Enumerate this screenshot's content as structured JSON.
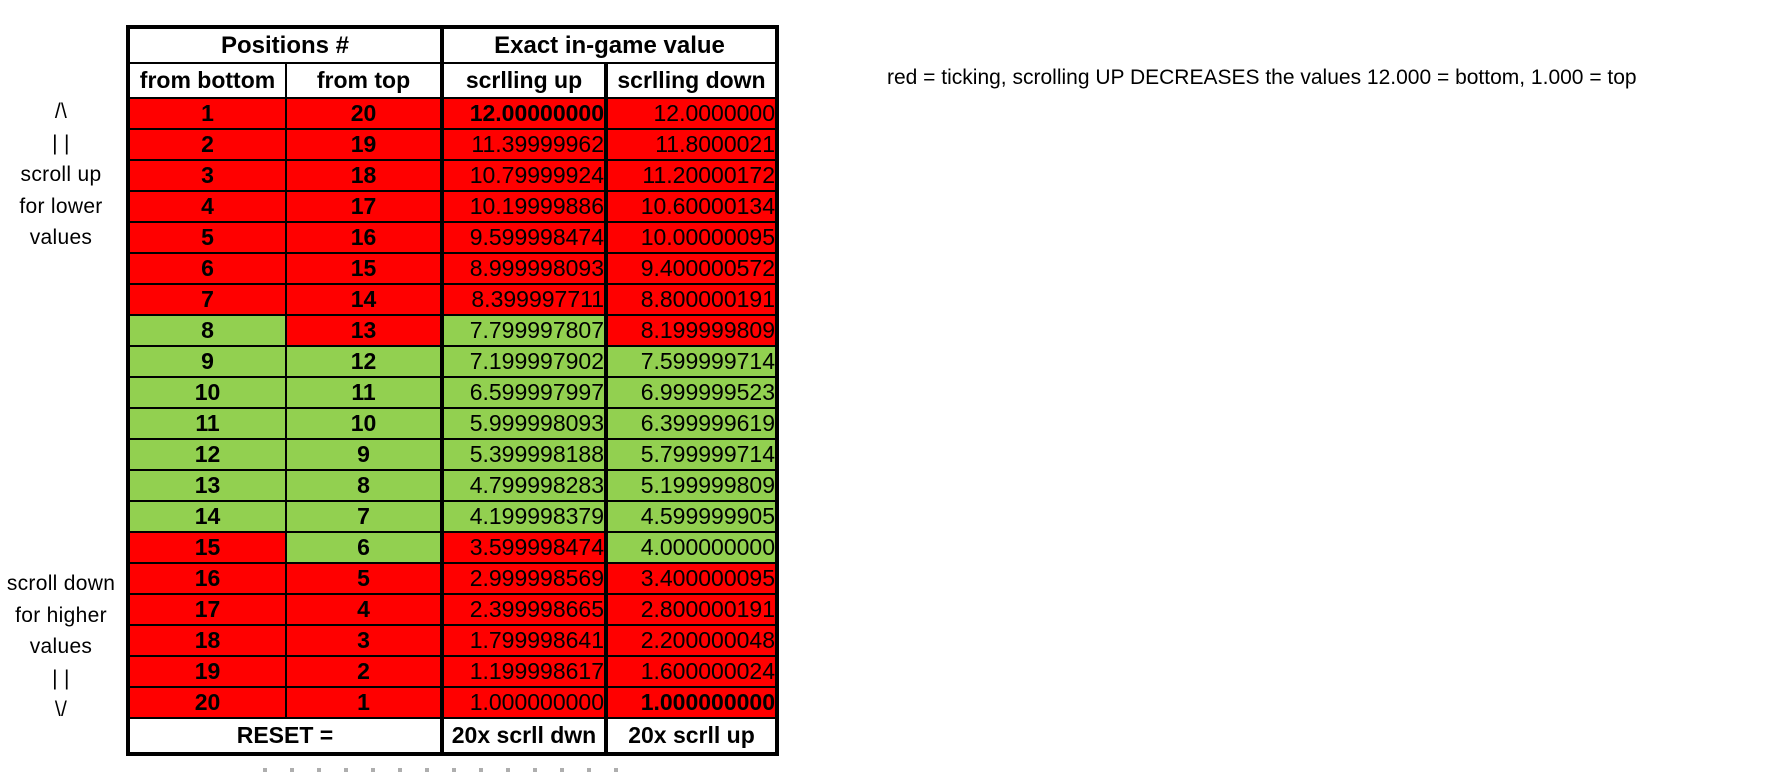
{
  "colors": {
    "red": "#FF0000",
    "green": "#92D050",
    "border": "#000000",
    "map": {
      "R": "#FF0000",
      "G": "#92D050"
    }
  },
  "annotations": {
    "left_top_lines": [
      "/\\",
      "| |",
      "scroll up",
      "for lower",
      "values"
    ],
    "left_bottom_lines": [
      "scroll down",
      "for higher",
      "values",
      "| |",
      "\\/"
    ],
    "right_note": "red = ticking, scrolling UP DECREASES the values 12.000 = bottom, 1.000 = top"
  },
  "table": {
    "group_headers": [
      {
        "label": "Positions #",
        "span": 2
      },
      {
        "label": "Exact in-game value",
        "span": 2
      }
    ],
    "column_headers": [
      "from bottom",
      "from top",
      "scrlling up",
      "scrlling down"
    ],
    "footer": {
      "reset_label": "RESET =",
      "scroll_down_label": "20x scrll dwn",
      "scroll_up_label": "20x scrll up"
    },
    "rows": [
      {
        "fb": "1",
        "ft": "20",
        "up": "12.00000000",
        "dn": "12.0000000",
        "fbC": "R",
        "ftC": "R",
        "upC": "R",
        "dnC": "R",
        "upB": true,
        "dnB": false
      },
      {
        "fb": "2",
        "ft": "19",
        "up": "11.39999962",
        "dn": "11.8000021",
        "fbC": "R",
        "ftC": "R",
        "upC": "R",
        "dnC": "R",
        "upB": false,
        "dnB": false
      },
      {
        "fb": "3",
        "ft": "18",
        "up": "10.79999924",
        "dn": "11.20000172",
        "fbC": "R",
        "ftC": "R",
        "upC": "R",
        "dnC": "R",
        "upB": false,
        "dnB": false
      },
      {
        "fb": "4",
        "ft": "17",
        "up": "10.19999886",
        "dn": "10.60000134",
        "fbC": "R",
        "ftC": "R",
        "upC": "R",
        "dnC": "R",
        "upB": false,
        "dnB": false
      },
      {
        "fb": "5",
        "ft": "16",
        "up": "9.599998474",
        "dn": "10.00000095",
        "fbC": "R",
        "ftC": "R",
        "upC": "R",
        "dnC": "R",
        "upB": false,
        "dnB": false
      },
      {
        "fb": "6",
        "ft": "15",
        "up": "8.999998093",
        "dn": "9.400000572",
        "fbC": "R",
        "ftC": "R",
        "upC": "R",
        "dnC": "R",
        "upB": false,
        "dnB": false
      },
      {
        "fb": "7",
        "ft": "14",
        "up": "8.399997711",
        "dn": "8.800000191",
        "fbC": "R",
        "ftC": "R",
        "upC": "R",
        "dnC": "R",
        "upB": false,
        "dnB": false
      },
      {
        "fb": "8",
        "ft": "13",
        "up": "7.799997807",
        "dn": "8.199999809",
        "fbC": "G",
        "ftC": "R",
        "upC": "G",
        "dnC": "R",
        "upB": false,
        "dnB": false
      },
      {
        "fb": "9",
        "ft": "12",
        "up": "7.199997902",
        "dn": "7.599999714",
        "fbC": "G",
        "ftC": "G",
        "upC": "G",
        "dnC": "G",
        "upB": false,
        "dnB": false
      },
      {
        "fb": "10",
        "ft": "11",
        "up": "6.599997997",
        "dn": "6.999999523",
        "fbC": "G",
        "ftC": "G",
        "upC": "G",
        "dnC": "G",
        "upB": false,
        "dnB": false
      },
      {
        "fb": "11",
        "ft": "10",
        "up": "5.999998093",
        "dn": "6.399999619",
        "fbC": "G",
        "ftC": "G",
        "upC": "G",
        "dnC": "G",
        "upB": false,
        "dnB": false
      },
      {
        "fb": "12",
        "ft": "9",
        "up": "5.399998188",
        "dn": "5.799999714",
        "fbC": "G",
        "ftC": "G",
        "upC": "G",
        "dnC": "G",
        "upB": false,
        "dnB": false
      },
      {
        "fb": "13",
        "ft": "8",
        "up": "4.799998283",
        "dn": "5.199999809",
        "fbC": "G",
        "ftC": "G",
        "upC": "G",
        "dnC": "G",
        "upB": false,
        "dnB": false
      },
      {
        "fb": "14",
        "ft": "7",
        "up": "4.199998379",
        "dn": "4.599999905",
        "fbC": "G",
        "ftC": "G",
        "upC": "G",
        "dnC": "G",
        "upB": false,
        "dnB": false
      },
      {
        "fb": "15",
        "ft": "6",
        "up": "3.599998474",
        "dn": "4.000000000",
        "fbC": "R",
        "ftC": "G",
        "upC": "R",
        "dnC": "G",
        "upB": false,
        "dnB": false
      },
      {
        "fb": "16",
        "ft": "5",
        "up": "2.999998569",
        "dn": "3.400000095",
        "fbC": "R",
        "ftC": "R",
        "upC": "R",
        "dnC": "R",
        "upB": false,
        "dnB": false
      },
      {
        "fb": "17",
        "ft": "4",
        "up": "2.399998665",
        "dn": "2.800000191",
        "fbC": "R",
        "ftC": "R",
        "upC": "R",
        "dnC": "R",
        "upB": false,
        "dnB": false
      },
      {
        "fb": "18",
        "ft": "3",
        "up": "1.799998641",
        "dn": "2.200000048",
        "fbC": "R",
        "ftC": "R",
        "upC": "R",
        "dnC": "R",
        "upB": false,
        "dnB": false
      },
      {
        "fb": "19",
        "ft": "2",
        "up": "1.199998617",
        "dn": "1.600000024",
        "fbC": "R",
        "ftC": "R",
        "upC": "R",
        "dnC": "R",
        "upB": false,
        "dnB": false
      },
      {
        "fb": "20",
        "ft": "1",
        "up": "1.000000000",
        "dn": "1.000000000",
        "fbC": "R",
        "ftC": "R",
        "upC": "R",
        "dnC": "R",
        "upB": false,
        "dnB": true
      }
    ]
  }
}
